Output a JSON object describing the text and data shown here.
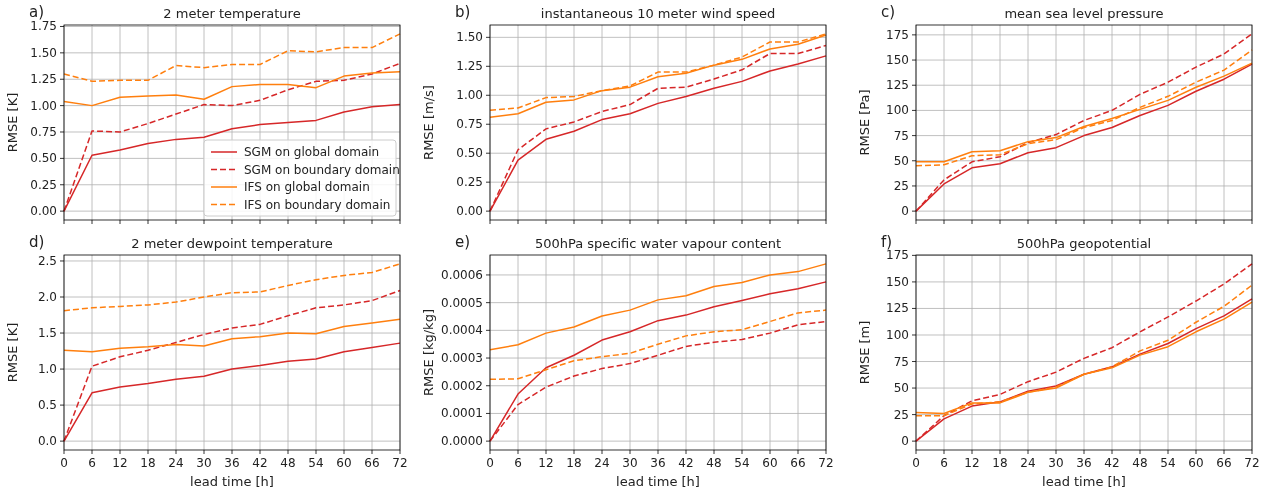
{
  "chart_data": [
    {
      "type": "line",
      "title": "2 meter temperature",
      "ylabel": "RMSE [K]",
      "annotations": [
        "a)"
      ],
      "x": [
        0,
        6,
        12,
        18,
        24,
        30,
        36,
        42,
        48,
        54,
        60,
        66,
        72
      ],
      "xlim": [
        0,
        72
      ],
      "xticks": [
        0,
        6,
        12,
        18,
        24,
        30,
        36,
        42,
        48,
        54,
        60,
        66,
        72
      ],
      "ylim": [
        -0.084,
        1.764
      ],
      "yticks": [
        {
          "value": 0,
          "label": "0.00"
        },
        {
          "value": 0.25,
          "label": "0.25"
        },
        {
          "value": 0.5,
          "label": "0.50"
        },
        {
          "value": 0.75,
          "label": "0.75"
        },
        {
          "value": 1,
          "label": "1.00"
        },
        {
          "value": 1.25,
          "label": "1.25"
        },
        {
          "value": 1.5,
          "label": "1.50"
        },
        {
          "value": 1.75,
          "label": "1.75"
        }
      ],
      "grid": true,
      "legend": "bottom right",
      "tick_labels": "y",
      "series": [
        {
          "name": "SGM on global domain",
          "color": "#d62728",
          "line_style": "solid",
          "values": [
            0,
            0.53,
            0.58,
            0.64,
            0.68,
            0.7,
            0.78,
            0.82,
            0.84,
            0.86,
            0.94,
            0.99,
            1.01
          ]
        },
        {
          "name": "SGM on boundary domain",
          "color": "#d62728",
          "line_style": "dashed",
          "values": [
            0,
            0.76,
            0.75,
            0.83,
            0.92,
            1.01,
            1.0,
            1.05,
            1.15,
            1.23,
            1.24,
            1.3,
            1.4
          ]
        },
        {
          "name": "IFS on global domain",
          "color": "#ff7f0e",
          "line_style": "solid",
          "values": [
            1.04,
            1.0,
            1.08,
            1.09,
            1.1,
            1.06,
            1.18,
            1.2,
            1.2,
            1.17,
            1.28,
            1.31,
            1.32
          ]
        },
        {
          "name": "IFS on boundary domain",
          "color": "#ff7f0e",
          "line_style": "dashed",
          "values": [
            1.3,
            1.23,
            1.24,
            1.24,
            1.38,
            1.36,
            1.39,
            1.39,
            1.52,
            1.51,
            1.55,
            1.55,
            1.68
          ]
        }
      ]
    },
    {
      "type": "line",
      "title": "instantaneous 10 meter wind speed",
      "ylabel": "RMSE [m/s]",
      "annotations": [
        "b)"
      ],
      "x": [
        0,
        6,
        12,
        18,
        24,
        30,
        36,
        42,
        48,
        54,
        60,
        66,
        72
      ],
      "xlim": [
        0,
        72
      ],
      "xticks": [
        0,
        6,
        12,
        18,
        24,
        30,
        36,
        42,
        48,
        54,
        60,
        66,
        72
      ],
      "ylim": [
        -0.0765,
        1.6065
      ],
      "yticks": [
        {
          "value": 0,
          "label": "0.00"
        },
        {
          "value": 0.25,
          "label": "0.25"
        },
        {
          "value": 0.5,
          "label": "0.50"
        },
        {
          "value": 0.75,
          "label": "0.75"
        },
        {
          "value": 1,
          "label": "1.00"
        },
        {
          "value": 1.25,
          "label": "1.25"
        },
        {
          "value": 1.5,
          "label": "1.50"
        }
      ],
      "grid": true,
      "tick_labels": "y",
      "series": [
        {
          "color": "#d62728",
          "line_style": "solid",
          "values": [
            0,
            0.44,
            0.62,
            0.69,
            0.79,
            0.84,
            0.93,
            0.99,
            1.06,
            1.12,
            1.21,
            1.27,
            1.34
          ]
        },
        {
          "color": "#d62728",
          "line_style": "dashed",
          "values": [
            0,
            0.53,
            0.71,
            0.77,
            0.86,
            0.92,
            1.06,
            1.07,
            1.14,
            1.22,
            1.36,
            1.36,
            1.43
          ]
        },
        {
          "color": "#ff7f0e",
          "line_style": "solid",
          "values": [
            0.81,
            0.84,
            0.94,
            0.96,
            1.04,
            1.07,
            1.16,
            1.19,
            1.26,
            1.31,
            1.4,
            1.44,
            1.52
          ]
        },
        {
          "color": "#ff7f0e",
          "line_style": "dashed",
          "values": [
            0.87,
            0.89,
            0.98,
            0.99,
            1.04,
            1.08,
            1.2,
            1.2,
            1.26,
            1.33,
            1.46,
            1.46,
            1.53
          ]
        }
      ]
    },
    {
      "type": "line",
      "title": "mean sea level pressure",
      "ylabel": "RMSE [Pa]",
      "annotations": [
        "c)"
      ],
      "x": [
        0,
        6,
        12,
        18,
        24,
        30,
        36,
        42,
        48,
        54,
        60,
        66,
        72
      ],
      "xlim": [
        0,
        72
      ],
      "xticks": [
        0,
        6,
        12,
        18,
        24,
        30,
        36,
        42,
        48,
        54,
        60,
        66,
        72
      ],
      "ylim": [
        -8.8,
        184.8
      ],
      "yticks": [
        0,
        25,
        50,
        75,
        100,
        125,
        150,
        175
      ],
      "grid": true,
      "tick_labels": "y",
      "series": [
        {
          "color": "#d62728",
          "line_style": "solid",
          "values": [
            0,
            27,
            43,
            47,
            58,
            63,
            75,
            83,
            95,
            105,
            119,
            131,
            146
          ]
        },
        {
          "color": "#d62728",
          "line_style": "dashed",
          "values": [
            0,
            31,
            49,
            54,
            68,
            76,
            90,
            100,
            116,
            128,
            143,
            156,
            176
          ]
        },
        {
          "color": "#ff7f0e",
          "line_style": "solid",
          "values": [
            49,
            49,
            59,
            60,
            69,
            73,
            84,
            92,
            101,
            110,
            123,
            134,
            147
          ]
        },
        {
          "color": "#ff7f0e",
          "line_style": "dashed",
          "values": [
            45,
            46,
            55,
            56,
            67,
            71,
            83,
            90,
            103,
            114,
            128,
            140,
            160
          ]
        }
      ]
    },
    {
      "type": "line",
      "title": "2 meter dewpoint temperature",
      "xlabel": "lead time [h]",
      "ylabel": "RMSE [K]",
      "annotations": [
        "d)"
      ],
      "x": [
        0,
        6,
        12,
        18,
        24,
        30,
        36,
        42,
        48,
        54,
        60,
        66,
        72
      ],
      "xlim": [
        0,
        72
      ],
      "xticks": [
        0,
        6,
        12,
        18,
        24,
        30,
        36,
        42,
        48,
        54,
        60,
        66,
        72
      ],
      "ylim": [
        -0.123,
        2.583
      ],
      "yticks": [
        {
          "value": 0,
          "label": "0.0"
        },
        {
          "value": 0.5,
          "label": "0.5"
        },
        {
          "value": 1,
          "label": "1.0"
        },
        {
          "value": 1.5,
          "label": "1.5"
        },
        {
          "value": 2,
          "label": "2.0"
        },
        {
          "value": 2.5,
          "label": "2.5"
        }
      ],
      "grid": true,
      "series": [
        {
          "color": "#d62728",
          "line_style": "solid",
          "values": [
            0,
            0.67,
            0.75,
            0.8,
            0.86,
            0.9,
            1.0,
            1.05,
            1.11,
            1.14,
            1.24,
            1.3,
            1.36
          ]
        },
        {
          "color": "#d62728",
          "line_style": "dashed",
          "values": [
            0,
            1.04,
            1.17,
            1.26,
            1.37,
            1.48,
            1.57,
            1.62,
            1.74,
            1.85,
            1.89,
            1.95,
            2.09
          ]
        },
        {
          "color": "#ff7f0e",
          "line_style": "solid",
          "values": [
            1.26,
            1.24,
            1.29,
            1.31,
            1.34,
            1.32,
            1.42,
            1.45,
            1.5,
            1.49,
            1.59,
            1.64,
            1.69
          ]
        },
        {
          "color": "#ff7f0e",
          "line_style": "dashed",
          "values": [
            1.81,
            1.85,
            1.87,
            1.89,
            1.93,
            2.0,
            2.06,
            2.07,
            2.16,
            2.24,
            2.3,
            2.34,
            2.46
          ]
        }
      ]
    },
    {
      "type": "line",
      "title": "500hPa specific water vapour content",
      "xlabel": "lead time [h]",
      "ylabel": "RMSE [kg/kg]",
      "annotations": [
        "e)"
      ],
      "x": [
        0,
        6,
        12,
        18,
        24,
        30,
        36,
        42,
        48,
        54,
        60,
        66,
        72
      ],
      "xlim": [
        0,
        72
      ],
      "xticks": [
        0,
        6,
        12,
        18,
        24,
        30,
        36,
        42,
        48,
        54,
        60,
        66,
        72
      ],
      "ylim": [
        -3.2e-05,
        0.000672
      ],
      "yticks": [
        {
          "value": 0,
          "label": "0.0000"
        },
        {
          "value": 0.0001,
          "label": "0.0001"
        },
        {
          "value": 0.0002,
          "label": "0.0002"
        },
        {
          "value": 0.0003,
          "label": "0.0003"
        },
        {
          "value": 0.0004,
          "label": "0.0004"
        },
        {
          "value": 0.0005,
          "label": "0.0005"
        },
        {
          "value": 0.0006,
          "label": "0.0006"
        }
      ],
      "grid": true,
      "series": [
        {
          "color": "#d62728",
          "line_style": "solid",
          "values": [
            0,
            0.00017,
            0.000265,
            0.00031,
            0.000365,
            0.000395,
            0.000435,
            0.000455,
            0.000485,
            0.000508,
            0.000532,
            0.00055,
            0.000575
          ]
        },
        {
          "color": "#d62728",
          "line_style": "dashed",
          "values": [
            0,
            0.000132,
            0.000195,
            0.000235,
            0.000262,
            0.00028,
            0.00031,
            0.000342,
            0.000357,
            0.000367,
            0.00039,
            0.00042,
            0.000432
          ]
        },
        {
          "color": "#ff7f0e",
          "line_style": "solid",
          "values": [
            0.00033,
            0.000348,
            0.00039,
            0.000412,
            0.000452,
            0.000473,
            0.00051,
            0.000525,
            0.000558,
            0.000573,
            0.0006,
            0.000612,
            0.00064
          ]
        },
        {
          "color": "#ff7f0e",
          "line_style": "dashed",
          "values": [
            0.000223,
            0.000225,
            0.000258,
            0.00029,
            0.000305,
            0.000317,
            0.00035,
            0.00038,
            0.000395,
            0.000402,
            0.000432,
            0.000463,
            0.000473
          ]
        }
      ]
    },
    {
      "type": "line",
      "title": "500hPa geopotential",
      "xlabel": "lead time [h]",
      "ylabel": "RMSE [m]",
      "annotations": [
        "f)"
      ],
      "x": [
        0,
        6,
        12,
        18,
        24,
        30,
        36,
        42,
        48,
        54,
        60,
        66,
        72
      ],
      "xlim": [
        0,
        72
      ],
      "xticks": [
        0,
        6,
        12,
        18,
        24,
        30,
        36,
        42,
        48,
        54,
        60,
        66,
        72
      ],
      "ylim": [
        -8.35,
        175.35
      ],
      "yticks": [
        0,
        25,
        50,
        75,
        100,
        125,
        150,
        175
      ],
      "grid": true,
      "series": [
        {
          "color": "#d62728",
          "line_style": "solid",
          "values": [
            0,
            21,
            33,
            37,
            47,
            52,
            63,
            70,
            82,
            92,
            106,
            118,
            134
          ]
        },
        {
          "color": "#d62728",
          "line_style": "dashed",
          "values": [
            0,
            24,
            38,
            44,
            56,
            65,
            78,
            88,
            103,
            117,
            132,
            148,
            167
          ]
        },
        {
          "color": "#ff7f0e",
          "line_style": "solid",
          "values": [
            27,
            26,
            36,
            36,
            46,
            50,
            63,
            69,
            81,
            89,
            103,
            115,
            131
          ]
        },
        {
          "color": "#ff7f0e",
          "line_style": "dashed",
          "values": [
            24,
            24,
            35,
            37,
            46,
            51,
            63,
            70,
            85,
            95,
            112,
            127,
            147
          ]
        }
      ]
    }
  ]
}
